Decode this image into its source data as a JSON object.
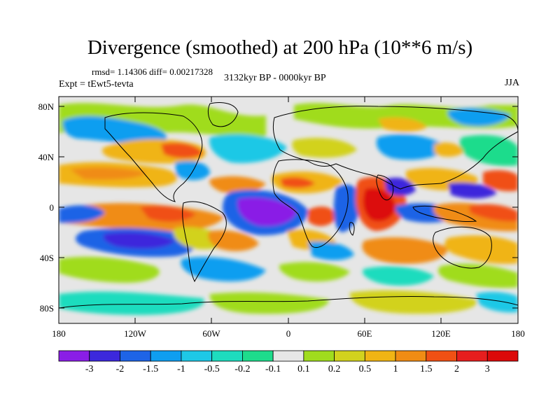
{
  "title": "Divergence (smoothed) at 200 hPa (10**6 m/s)",
  "stats": "rmsd= 1.14306 diff= 0.00217328",
  "experiment": "Expt = tEwt5-tevta",
  "period": "3132kyr BP - 0000kyr BP",
  "season": "JJA",
  "lat_labels": [
    "80N",
    "40N",
    "0",
    "40S",
    "80S"
  ],
  "lon_labels": [
    "180",
    "120W",
    "60W",
    "0",
    "60E",
    "120E",
    "180"
  ],
  "colorbar": {
    "labels": [
      "-3",
      "-2",
      "-1.5",
      "-1",
      "-0.5",
      "-0.2",
      "-0.1",
      "0.1",
      "0.2",
      "0.5",
      "1",
      "1.5",
      "2",
      "3"
    ],
    "colors": [
      "#8a1ee6",
      "#3c28dc",
      "#1e64e6",
      "#0f9ef0",
      "#1ec8e6",
      "#1edcbe",
      "#1edc8c",
      "#e6e6e6",
      "#a0dc1e",
      "#d2d21e",
      "#f0b414",
      "#f08c14",
      "#f05014",
      "#e61e1e",
      "#dc0a0a"
    ]
  }
}
